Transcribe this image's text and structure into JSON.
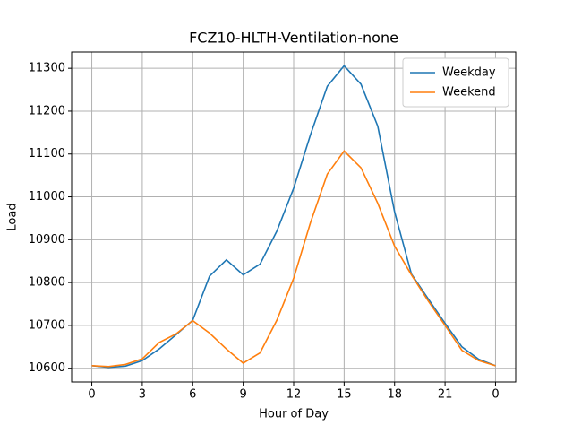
{
  "chart_data": {
    "type": "line",
    "title": "FCZ10-HLTH-Ventilation-none",
    "x_label": "Hour of Day",
    "y_label": "Load",
    "x": [
      0,
      1,
      2,
      3,
      4,
      5,
      6,
      7,
      8,
      9,
      10,
      11,
      12,
      13,
      14,
      15,
      16,
      17,
      18,
      19,
      20,
      21,
      22,
      23,
      24
    ],
    "series": [
      {
        "name": "Weekday",
        "color": "#1f77b4",
        "values": [
          10606,
          10602,
          10605,
          10618,
          10645,
          10678,
          10712,
          10815,
          10853,
          10818,
          10843,
          10920,
          11020,
          11145,
          11258,
          11306,
          11263,
          11165,
          10965,
          10820,
          10762,
          10705,
          10650,
          10621,
          10606
        ]
      },
      {
        "name": "Weekend",
        "color": "#ff7f0e",
        "values": [
          10606,
          10604,
          10609,
          10622,
          10660,
          10680,
          10711,
          10682,
          10645,
          10612,
          10636,
          10712,
          10810,
          10940,
          11053,
          11107,
          11068,
          10985,
          10885,
          10818,
          10757,
          10700,
          10642,
          10618,
          10606
        ]
      }
    ],
    "xlim": [
      -1.2,
      25.2
    ],
    "ylim": [
      10568,
      11338
    ],
    "xticks": [
      0,
      3,
      6,
      9,
      12,
      15,
      18,
      21,
      {
        "value": 24,
        "label": "0"
      }
    ],
    "yticks": [
      10600,
      10700,
      10800,
      10900,
      11000,
      11100,
      11200,
      11300
    ],
    "grid": true,
    "legend": "upper right"
  }
}
